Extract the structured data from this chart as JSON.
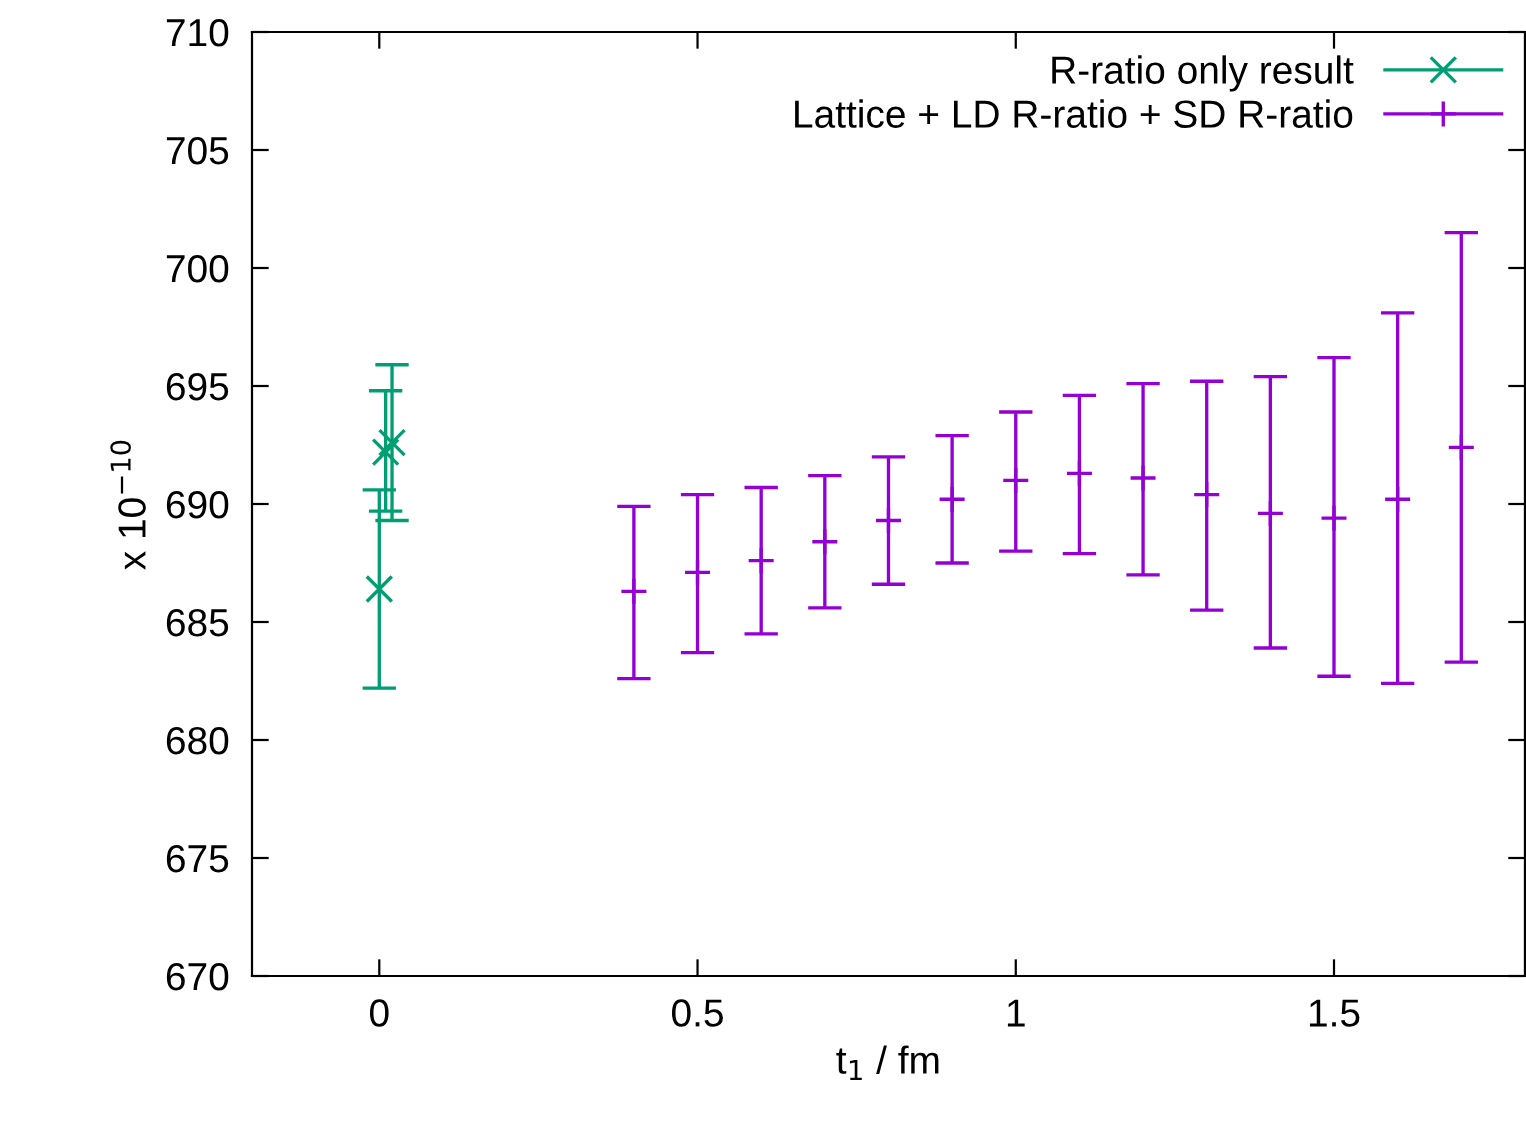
{
  "chart_data": {
    "type": "scatter",
    "xlabel": "t$_{1}$ / fm",
    "ylabel": "x 10$^{−10}$",
    "xlim": [
      -0.2,
      1.8
    ],
    "xticks": [
      0,
      0.5,
      1,
      1.5
    ],
    "ylim": [
      670,
      710
    ],
    "yticks": [
      670,
      675,
      680,
      685,
      690,
      695,
      700,
      705,
      710
    ],
    "grid": false,
    "legend": "top right",
    "series": [
      {
        "name": "R-ratio only result",
        "color": "#009e73",
        "marker": "cross",
        "x": [
          0,
          0.01,
          0.02
        ],
        "values": [
          686.4,
          692.2,
          692.6
        ],
        "errors": [
          [
            682.2,
            690.6
          ],
          [
            689.7,
            694.8
          ],
          [
            689.3,
            695.9
          ]
        ]
      },
      {
        "name": "Lattice + LD R-ratio + SD R-ratio",
        "color": "#9400d3",
        "marker": "plus",
        "x": [
          0.4,
          0.5,
          0.6,
          0.7,
          0.8,
          0.9,
          1.0,
          1.1,
          1.2,
          1.3,
          1.4,
          1.5,
          1.6,
          1.7
        ],
        "values": [
          686.3,
          687.1,
          687.6,
          688.4,
          689.3,
          690.2,
          691.0,
          691.3,
          691.1,
          690.4,
          689.6,
          689.4,
          690.2,
          692.4
        ],
        "errors": [
          [
            682.6,
            689.9
          ],
          [
            683.7,
            690.4
          ],
          [
            684.5,
            690.7
          ],
          [
            685.6,
            691.2
          ],
          [
            686.6,
            692.0
          ],
          [
            687.5,
            692.9
          ],
          [
            688.0,
            693.9
          ],
          [
            687.9,
            694.6
          ],
          [
            687.0,
            695.1
          ],
          [
            685.5,
            695.2
          ],
          [
            683.9,
            695.4
          ],
          [
            682.7,
            696.2
          ],
          [
            682.4,
            698.1
          ],
          [
            683.3,
            701.5
          ]
        ]
      }
    ]
  }
}
